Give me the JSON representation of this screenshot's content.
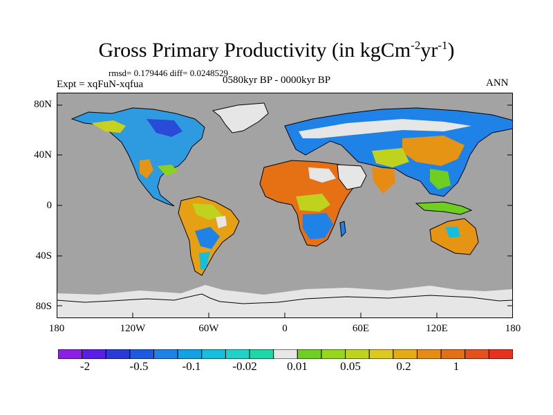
{
  "title": {
    "main": "Gross Primary Productivity (in kgCm",
    "sup1": "-2",
    "mid": "yr",
    "sup2": "-1",
    "end": ")"
  },
  "stats": "rmsd= 0.179446 diff= 0.0248529",
  "experiment": "Expt = xqFuN-xqfua",
  "period": "0580kyr BP - 0000kyr BP",
  "season": "ANN",
  "axes": {
    "lat_labels": [
      "80N",
      "40N",
      "0",
      "40S",
      "80S"
    ],
    "lon_labels": [
      "180",
      "120W",
      "60W",
      "0",
      "60E",
      "120E",
      "180"
    ]
  },
  "colorbar": {
    "colors": [
      "#8c1ee6",
      "#5a1ee6",
      "#2a3ad8",
      "#1e5ae0",
      "#1e82e6",
      "#12a0e6",
      "#14bedc",
      "#1ed2c8",
      "#1ed7a8",
      "#e6e6e6",
      "#6ecf20",
      "#96d71e",
      "#bed21e",
      "#dcc81e",
      "#e6aa14",
      "#e68c14",
      "#e66e14",
      "#e6501e",
      "#e6321e"
    ],
    "labels": [
      "-2",
      "-0.5",
      "-0.1",
      "-0.02",
      "0.01",
      "0.05",
      "0.2",
      "1"
    ]
  },
  "map_colors": {
    "ocean": "#a3a3a3",
    "ice": "#e6e6e6"
  }
}
